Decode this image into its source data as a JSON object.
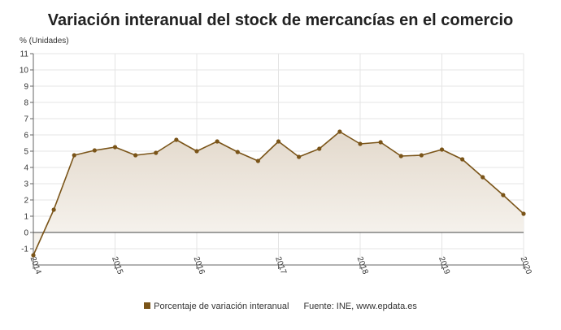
{
  "chart_data": {
    "type": "line",
    "title": "Variación interanual del stock de mercancías en el comercio",
    "unit_label": "% (Unidades)",
    "xlabel": "",
    "ylabel": "",
    "ylim": [
      -2,
      11
    ],
    "yticks": [
      -1,
      0,
      1,
      2,
      3,
      4,
      5,
      6,
      7,
      8,
      9,
      10,
      11
    ],
    "xlim": [
      2014.0,
      2020.0
    ],
    "year_ticks": [
      "2014",
      "2015",
      "2016",
      "2017",
      "2018",
      "2019",
      "2020"
    ],
    "grid": true,
    "area_fill": true,
    "legend_placement": "bottom",
    "series": [
      {
        "name": "Porcentaje de variación interanual",
        "color": "#7a5418",
        "points": [
          {
            "x": 2014.0,
            "y": -1.4
          },
          {
            "x": 2014.25,
            "y": 1.4
          },
          {
            "x": 2014.5,
            "y": 4.75
          },
          {
            "x": 2014.75,
            "y": 5.05
          },
          {
            "x": 2015.0,
            "y": 5.25
          },
          {
            "x": 2015.25,
            "y": 4.75
          },
          {
            "x": 2015.5,
            "y": 4.9
          },
          {
            "x": 2015.75,
            "y": 5.7
          },
          {
            "x": 2016.0,
            "y": 5.0
          },
          {
            "x": 2016.25,
            "y": 5.6
          },
          {
            "x": 2016.5,
            "y": 4.95
          },
          {
            "x": 2016.75,
            "y": 4.4
          },
          {
            "x": 2017.0,
            "y": 5.6
          },
          {
            "x": 2017.25,
            "y": 4.65
          },
          {
            "x": 2017.5,
            "y": 5.15
          },
          {
            "x": 2017.75,
            "y": 6.2
          },
          {
            "x": 2018.0,
            "y": 5.45
          },
          {
            "x": 2018.25,
            "y": 5.55
          },
          {
            "x": 2018.5,
            "y": 4.7
          },
          {
            "x": 2018.75,
            "y": 4.75
          },
          {
            "x": 2019.0,
            "y": 5.1
          },
          {
            "x": 2019.25,
            "y": 4.5
          },
          {
            "x": 2019.5,
            "y": 3.4
          },
          {
            "x": 2019.75,
            "y": 2.3
          },
          {
            "x": 2020.0,
            "y": 1.15
          }
        ]
      }
    ],
    "source_text": "Fuente: INE, www.epdata.es"
  },
  "colors": {
    "line": "#7a5418",
    "area_top": "#e3d9cc",
    "area_bottom": "#f9f7f3",
    "grid": "#e4e4e4",
    "axis": "#666666",
    "zero_line": "#444444"
  }
}
